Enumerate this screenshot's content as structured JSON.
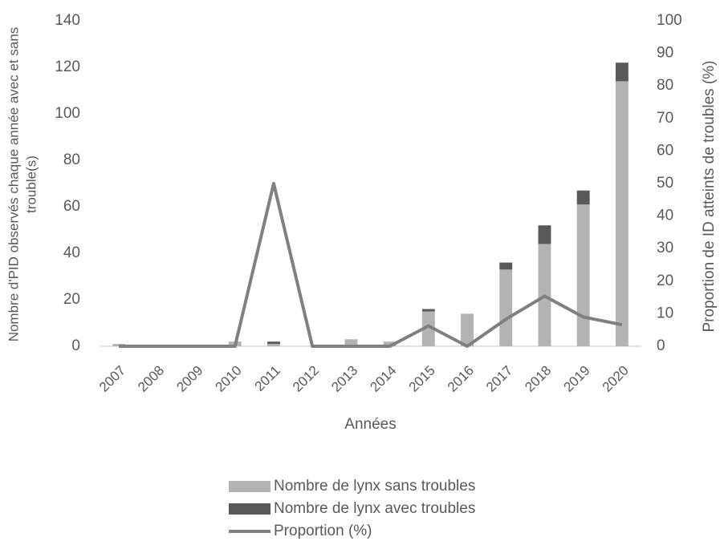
{
  "chart_data": {
    "type": "bar",
    "categories": [
      "2007",
      "2008",
      "2009",
      "2010",
      "2011",
      "2012",
      "2013",
      "2014",
      "2015",
      "2016",
      "2017",
      "2018",
      "2019",
      "2020"
    ],
    "series": [
      {
        "name": "Nombre de lynx sans troubles",
        "type": "bar",
        "color": "#b3b3b3",
        "values": [
          1,
          0,
          0,
          2,
          1,
          0,
          3,
          2,
          15,
          14,
          33,
          44,
          61,
          114
        ]
      },
      {
        "name": "Nombre de lynx avec troubles",
        "type": "bar",
        "color": "#595959",
        "values": [
          0,
          0,
          0,
          0,
          1,
          0,
          0,
          0,
          1,
          0,
          3,
          8,
          6,
          8
        ]
      },
      {
        "name": "Proportion (%)",
        "type": "line",
        "axis": "y2",
        "color": "#808080",
        "values": [
          0,
          0,
          0,
          0,
          50,
          0,
          0,
          0,
          6.25,
          0,
          8.3,
          15.4,
          9,
          6.6
        ]
      }
    ],
    "stacked": true,
    "ylim": [
      0,
      140
    ],
    "yticks": [
      0,
      20,
      40,
      60,
      80,
      100,
      120,
      140
    ],
    "y2lim": [
      0,
      100
    ],
    "y2ticks": [
      0,
      10,
      20,
      30,
      40,
      50,
      60,
      70,
      80,
      90,
      100
    ],
    "x_label": "Années",
    "y_label": [
      "Nombre d'PID observés chaque année avec et sans",
      "trouble(s)"
    ],
    "y2_label": "Proportion de ID atteints de troubles (%)",
    "legend": "bottom"
  }
}
